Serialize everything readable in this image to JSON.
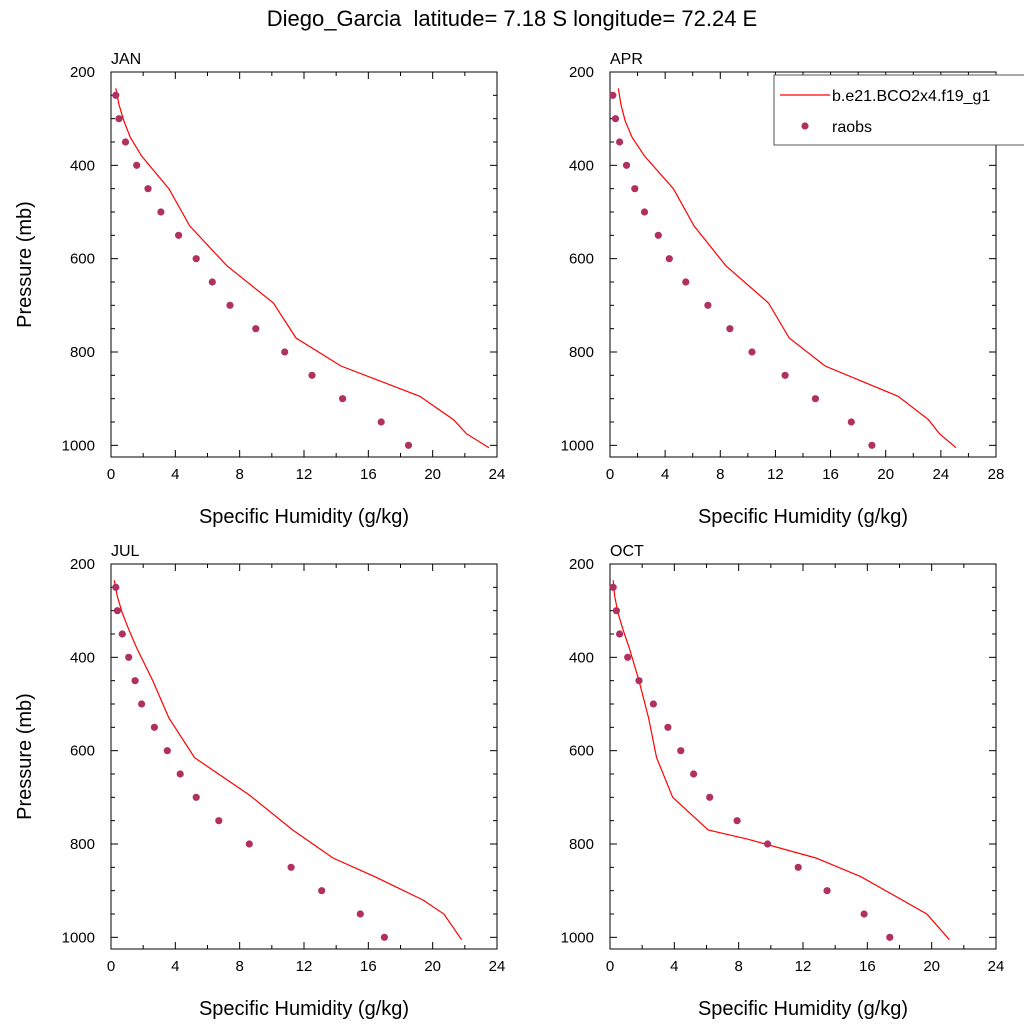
{
  "figure": {
    "title": "Diego_Garcia  latitude= 7.18 S longitude= 72.24 E"
  },
  "legend": {
    "model_label": "b.e21.BCO2x4.f19_g1",
    "obs_label": "raobs"
  },
  "colors": {
    "model_line": "#ff0000",
    "obs_marker": "#b03060"
  },
  "chart_data": [
    {
      "type": "line",
      "title": "JAN",
      "xlabel": "Specific Humidity (g/kg)",
      "ylabel": "Pressure (mb)",
      "xlim": [
        0,
        24
      ],
      "ylim": [
        200,
        1025
      ],
      "y_inverted": true,
      "xticks": [
        0,
        4,
        8,
        12,
        16,
        20,
        24
      ],
      "yticks": [
        200,
        400,
        600,
        800,
        1000
      ],
      "series": [
        {
          "name": "b.e21.BCO2x4.f19_g1",
          "style": "line",
          "x": [
            0.3,
            0.5,
            0.8,
            1.2,
            1.9,
            3.6,
            4.9,
            7.2,
            10.1,
            11.5,
            14.3,
            19.2,
            21.3,
            22.1,
            23.5
          ],
          "y": [
            235,
            270,
            305,
            340,
            380,
            450,
            530,
            615,
            695,
            770,
            830,
            895,
            945,
            975,
            1005
          ]
        },
        {
          "name": "raobs",
          "style": "marker",
          "x": [
            0.3,
            0.5,
            0.9,
            1.6,
            2.3,
            3.1,
            4.2,
            5.3,
            6.3,
            7.4,
            9.0,
            10.8,
            12.5,
            14.4,
            16.8,
            18.5
          ],
          "y": [
            250,
            300,
            350,
            400,
            450,
            500,
            550,
            600,
            650,
            700,
            750,
            800,
            850,
            900,
            950,
            1000
          ]
        }
      ]
    },
    {
      "type": "line",
      "title": "APR",
      "xlabel": "Specific Humidity (g/kg)",
      "ylabel": "",
      "xlim": [
        0,
        28
      ],
      "ylim": [
        200,
        1025
      ],
      "y_inverted": true,
      "xticks": [
        0,
        4,
        8,
        12,
        16,
        20,
        24,
        28
      ],
      "yticks": [
        200,
        400,
        600,
        800,
        1000
      ],
      "series": [
        {
          "name": "b.e21.BCO2x4.f19_g1",
          "style": "line",
          "x": [
            0.6,
            0.8,
            1.1,
            1.6,
            2.5,
            4.6,
            6.1,
            8.4,
            11.5,
            13.0,
            15.6,
            20.9,
            23.1,
            23.9,
            25.1
          ],
          "y": [
            235,
            270,
            305,
            340,
            380,
            450,
            530,
            615,
            695,
            770,
            830,
            895,
            945,
            975,
            1005
          ]
        },
        {
          "name": "raobs",
          "style": "marker",
          "x": [
            0.2,
            0.4,
            0.7,
            1.2,
            1.8,
            2.5,
            3.5,
            4.3,
            5.5,
            7.1,
            8.7,
            10.3,
            12.7,
            14.9,
            17.5,
            19.0
          ],
          "y": [
            250,
            300,
            350,
            400,
            450,
            500,
            550,
            600,
            650,
            700,
            750,
            800,
            850,
            900,
            950,
            1000
          ]
        }
      ]
    },
    {
      "type": "line",
      "title": "JUL",
      "xlabel": "Specific Humidity (g/kg)",
      "ylabel": "Pressure (mb)",
      "xlim": [
        0,
        24
      ],
      "ylim": [
        200,
        1025
      ],
      "y_inverted": true,
      "xticks": [
        0,
        4,
        8,
        12,
        16,
        20,
        24
      ],
      "yticks": [
        200,
        400,
        600,
        800,
        1000
      ],
      "series": [
        {
          "name": "b.e21.BCO2x4.f19_g1",
          "style": "line",
          "x": [
            0.2,
            0.4,
            0.7,
            1.1,
            1.6,
            2.6,
            3.6,
            5.2,
            8.6,
            11.3,
            13.8,
            16.4,
            19.4,
            20.7,
            21.8
          ],
          "y": [
            235,
            270,
            305,
            340,
            380,
            450,
            530,
            615,
            695,
            770,
            830,
            870,
            920,
            950,
            1005
          ]
        },
        {
          "name": "raobs",
          "style": "marker",
          "x": [
            0.3,
            0.4,
            0.7,
            1.1,
            1.5,
            1.9,
            2.7,
            3.5,
            4.3,
            5.3,
            6.7,
            8.6,
            11.2,
            13.1,
            15.5,
            17.0
          ],
          "y": [
            250,
            300,
            350,
            400,
            450,
            500,
            550,
            600,
            650,
            700,
            750,
            800,
            850,
            900,
            950,
            1000
          ]
        }
      ]
    },
    {
      "type": "line",
      "title": "OCT",
      "xlabel": "Specific Humidity (g/kg)",
      "ylabel": "",
      "xlim": [
        0,
        24
      ],
      "ylim": [
        200,
        1025
      ],
      "y_inverted": true,
      "xticks": [
        0,
        4,
        8,
        12,
        16,
        20,
        24
      ],
      "yticks": [
        200,
        400,
        600,
        800,
        1000
      ],
      "series": [
        {
          "name": "b.e21.BCO2x4.f19_g1",
          "style": "line",
          "x": [
            0.2,
            0.3,
            0.5,
            0.8,
            1.2,
            1.8,
            2.4,
            2.9,
            3.9,
            6.1,
            8.6,
            12.8,
            15.6,
            19.7,
            21.1
          ],
          "y": [
            235,
            270,
            305,
            340,
            380,
            450,
            530,
            615,
            700,
            770,
            790,
            830,
            870,
            950,
            1005
          ]
        },
        {
          "name": "raobs",
          "style": "marker",
          "x": [
            0.2,
            0.4,
            0.6,
            1.1,
            1.8,
            2.7,
            3.6,
            4.4,
            5.2,
            6.2,
            7.9,
            9.8,
            11.7,
            13.5,
            15.8,
            17.4
          ],
          "y": [
            250,
            300,
            350,
            400,
            450,
            500,
            550,
            600,
            650,
            700,
            750,
            800,
            850,
            900,
            950,
            1000
          ]
        }
      ]
    }
  ]
}
